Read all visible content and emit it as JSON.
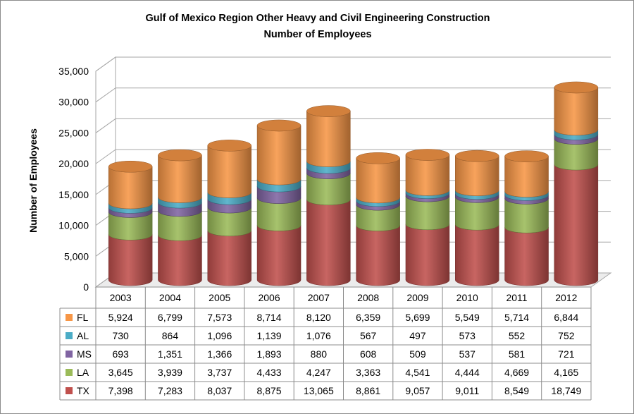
{
  "chart_data": {
    "type": "bar",
    "stacked": true,
    "title": "Gulf of Mexico Region Other Heavy and Civil Engineering Construction",
    "subtitle": "Number of Employees",
    "ylabel": "Number of Employees",
    "xlabel": "",
    "ylim": [
      0,
      35000
    ],
    "yticks": [
      0,
      5000,
      10000,
      15000,
      20000,
      25000,
      30000,
      35000
    ],
    "ytick_labels": [
      "0",
      "5,000",
      "10,000",
      "15,000",
      "20,000",
      "25,000",
      "30,000",
      "35,000"
    ],
    "grid": true,
    "legend": "data-table",
    "categories": [
      "2003",
      "2004",
      "2005",
      "2006",
      "2007",
      "2008",
      "2009",
      "2010",
      "2011",
      "2012"
    ],
    "series": [
      {
        "name": "TX",
        "color": "#c0504d",
        "values": [
          7398,
          7283,
          8037,
          8875,
          13065,
          8861,
          9057,
          9011,
          8549,
          18749
        ],
        "labels": [
          "7,398",
          "7,283",
          "8,037",
          "8,875",
          "13,065",
          "8,861",
          "9,057",
          "9,011",
          "8,549",
          "18,749"
        ]
      },
      {
        "name": "LA",
        "color": "#9bbb59",
        "values": [
          3645,
          3939,
          3737,
          4433,
          4247,
          3363,
          4541,
          4444,
          4669,
          4165
        ],
        "labels": [
          "3,645",
          "3,939",
          "3,737",
          "4,433",
          "4,247",
          "3,363",
          "4,541",
          "4,444",
          "4,669",
          "4,165"
        ]
      },
      {
        "name": "MS",
        "color": "#8064a2",
        "values": [
          693,
          1351,
          1366,
          1893,
          880,
          608,
          509,
          537,
          581,
          721
        ],
        "labels": [
          "693",
          "1,351",
          "1,366",
          "1,893",
          "880",
          "608",
          "509",
          "537",
          "581",
          "721"
        ]
      },
      {
        "name": "AL",
        "color": "#4bacc6",
        "values": [
          730,
          864,
          1096,
          1139,
          1076,
          567,
          497,
          573,
          552,
          752
        ],
        "labels": [
          "730",
          "864",
          "1,096",
          "1,139",
          "1,076",
          "567",
          "497",
          "573",
          "552",
          "752"
        ]
      },
      {
        "name": "FL",
        "color": "#f79646",
        "values": [
          5924,
          6799,
          7573,
          8714,
          8120,
          6359,
          5699,
          5549,
          5714,
          6844
        ],
        "labels": [
          "5,924",
          "6,799",
          "7,573",
          "8,714",
          "8,120",
          "6,359",
          "5,699",
          "5,549",
          "5,714",
          "6,844"
        ]
      }
    ],
    "table_row_order": [
      "FL",
      "AL",
      "MS",
      "LA",
      "TX"
    ]
  }
}
